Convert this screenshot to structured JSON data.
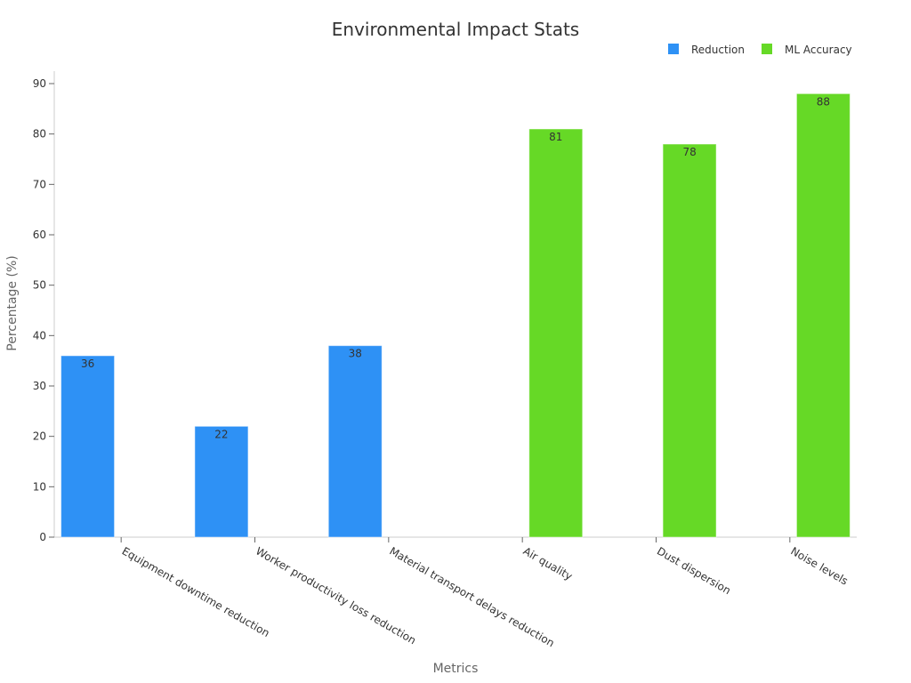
{
  "chart_data": {
    "type": "bar",
    "title": "Environmental Impact Stats",
    "xlabel": "Metrics",
    "ylabel": "Percentage (%)",
    "ylim": [
      0,
      90
    ],
    "yticks": [
      0,
      10,
      20,
      30,
      40,
      50,
      60,
      70,
      80,
      90
    ],
    "grid": false,
    "legend_position": "top-right",
    "categories": [
      "Equipment downtime reduction",
      "Worker productivity loss reduction",
      "Material transport delays reduction",
      "Air quality",
      "Dust dispersion",
      "Noise levels"
    ],
    "series": [
      {
        "name": "Reduction",
        "color": "#2e91f5",
        "values": [
          36,
          22,
          38,
          null,
          null,
          null
        ]
      },
      {
        "name": "ML Accuracy",
        "color": "#66d926",
        "values": [
          null,
          null,
          null,
          81,
          78,
          88
        ]
      }
    ]
  }
}
